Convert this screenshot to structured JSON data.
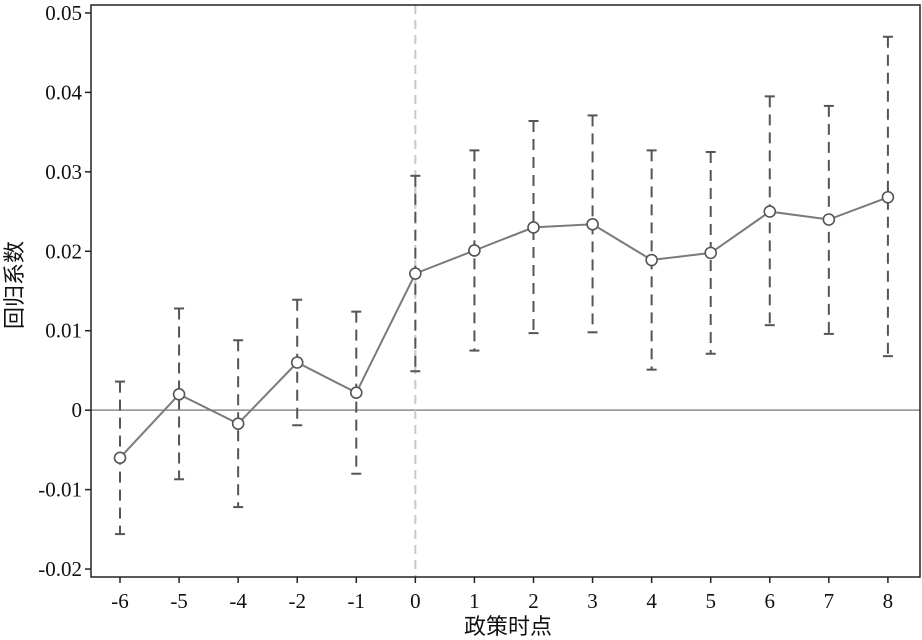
{
  "chart_data": {
    "type": "line",
    "title": "",
    "xlabel": "政策时点",
    "ylabel": "回归系数",
    "categories": [
      "-6",
      "-5",
      "-4",
      "-2",
      "-1",
      "0",
      "1",
      "2",
      "3",
      "4",
      "5",
      "6",
      "7",
      "8"
    ],
    "ylim": [
      -0.021,
      0.051
    ],
    "yticks": [
      0.05,
      0.04,
      0.03,
      0.02,
      0.01,
      0,
      -0.01,
      -0.02
    ],
    "ytick_labels": [
      "0.05",
      "0.04",
      "0.03",
      "0.02",
      "0.01",
      "0",
      "-0.01",
      "-0.02"
    ],
    "series": [
      {
        "values": [
          -0.006,
          0.002,
          -0.0017,
          0.006,
          0.0022,
          0.0172,
          0.0201,
          0.023,
          0.0234,
          0.0189,
          0.0198,
          0.025,
          0.024,
          0.0268
        ],
        "ci_upper": [
          0.0036,
          0.0128,
          0.0088,
          0.0139,
          0.0124,
          0.0295,
          0.0327,
          0.0364,
          0.0371,
          0.0327,
          0.0325,
          0.0395,
          0.0383,
          0.047
        ],
        "ci_lower": [
          -0.0156,
          -0.0087,
          -0.0122,
          -0.0019,
          -0.008,
          0.0049,
          0.0075,
          0.0097,
          0.0098,
          0.0051,
          0.0071,
          0.0107,
          0.0096,
          0.0068
        ]
      }
    ],
    "reference_lines": {
      "horizontal_y": 0,
      "vertical_at_category": "0"
    },
    "grid": false,
    "colors": {
      "series": "#7a7a7a",
      "error_bars": "#555555",
      "zero_line": "#8c8c8c",
      "event_line": "#c8c8c8",
      "axes": "#222222"
    }
  }
}
